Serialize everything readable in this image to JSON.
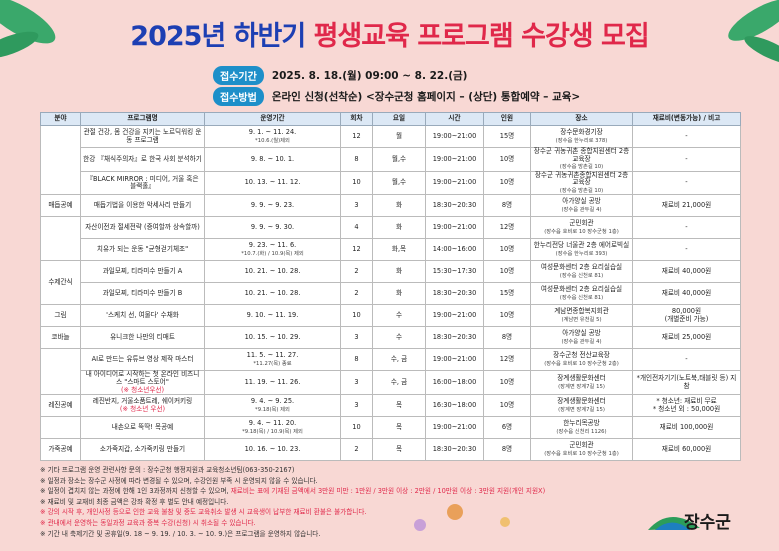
{
  "header": {
    "title_year": "2025년 하반기",
    "title_main": "평생교육 프로그램 수강생 모집",
    "info": [
      {
        "label": "접수기간",
        "value": "2025. 8. 18.(월) 09:00 ~ 8. 22.(금)"
      },
      {
        "label": "접수방법",
        "value": "온라인 신청(선착순) <장수군청 홈페이지 – (상단) 통합예약 – 교육>"
      }
    ]
  },
  "table": {
    "columns": [
      "분야",
      "프로그램명",
      "운영기간",
      "회차",
      "요일",
      "시간",
      "인원",
      "장소",
      "재료비(변동가능) / 비고"
    ],
    "groups": [
      {
        "rows": [
          {
            "name": "관절 건강, 몸 건강을 지키는 노르딕워킹 운동 프로그램",
            "period": "9. 1. ~ 11. 24.",
            "period_note": "*10.6.(월)제외",
            "sessions": "12",
            "day": "월",
            "time": "19:00~21:00",
            "capacity": "15명",
            "place": "장수문화경기장",
            "place_address": "(장수읍 한누리로 378)",
            "fee": "-"
          },
          {
            "name": "한강 『채식주의자』로 한국 사회 분석하기",
            "period": "9. 8. ~ 10. 1.",
            "sessions": "8",
            "day": "월,수",
            "time": "19:00~21:00",
            "capacity": "10명",
            "place": "장수군 귀농귀촌 종합지원센터 2층 교육장",
            "place_address": "(장수읍 방촌길 10)",
            "fee": "-"
          },
          {
            "name": "『BLACK MIRROR : 미디어, 거울 혹은 블랙홀』",
            "period": "10. 13. ~ 11. 12.",
            "sessions": "10",
            "day": "월,수",
            "time": "19:00~21:00",
            "capacity": "10명",
            "place": "장수군 귀농귀촌종합지원센터 2층 교육장",
            "place_address": "(장수읍 방촌길 10)",
            "fee": "-"
          }
        ]
      },
      {
        "category": "매듭공예",
        "rows": [
          {
            "name": "매듭기법을 이용한 악세사리 만들기",
            "period": "9. 9. ~ 9. 23.",
            "sessions": "3",
            "day": "화",
            "time": "18:30~20:30",
            "capacity": "8명",
            "place": "아가양실 공방",
            "place_address": "(장수읍 관두길 4)",
            "fee": "재료비 21,000원"
          }
        ]
      },
      {
        "rows": [
          {
            "name": "자산이전과 절세전략 (증여할까 상속할까)",
            "period": "9. 9. ~ 9. 30.",
            "sessions": "4",
            "day": "화",
            "time": "19:00~21:00",
            "capacity": "12명",
            "place": "군민회관",
            "place_address": "(장수읍 호비로 10 장수군청 1층)",
            "fee": "-"
          },
          {
            "name": "치유가 되는 운동 \"균형걷기체조\"",
            "period": "9. 23. ~ 11. 6.",
            "period_note": "*10.7.(화) / 10.9(목) 제외",
            "sessions": "12",
            "day": "화,목",
            "time": "14:00~16:00",
            "capacity": "10명",
            "place": "한누리전당 너울관 2층 에어로빅실",
            "place_address": "(장수읍 한누리로 393)",
            "fee": "-"
          }
        ]
      },
      {
        "category": "수제간식",
        "rows": [
          {
            "name": "과일모찌, 티라미수 만들기 A",
            "period": "10. 21. ~ 10. 28.",
            "sessions": "2",
            "day": "화",
            "time": "15:30~17:30",
            "capacity": "10명",
            "place": "여성문화센터 2층 요리실습실",
            "place_address": "(장수읍 신천로 81)",
            "fee": "재료비 40,000원"
          },
          {
            "name": "과일모찌, 티라미수 만들기 B",
            "period": "10. 21. ~ 10. 28.",
            "sessions": "2",
            "day": "화",
            "time": "18:30~20:30",
            "capacity": "15명",
            "place": "여성문화센터 2층 요리실습실",
            "place_address": "(장수읍 신천로 81)",
            "fee": "재료비 40,000원"
          }
        ]
      },
      {
        "category": "그림",
        "rows": [
          {
            "name": "'스케치 선, 여물다' 수채화",
            "period": "9. 10. ~ 11. 19.",
            "sessions": "10",
            "day": "수",
            "time": "19:00~21:00",
            "capacity": "10명",
            "place": "계남면종합복지회관",
            "place_address": "(계남면 유천길 5)",
            "fee": "80,000원",
            "fee_note": "(개별준비 가능)"
          }
        ]
      },
      {
        "category": "코바늘",
        "rows": [
          {
            "name": "유니크한 나만의 티매트",
            "period": "10. 15. ~ 10. 29.",
            "sessions": "3",
            "day": "수",
            "time": "18:30~20:30",
            "capacity": "8명",
            "place": "아가양실 공방",
            "place_address": "(장수읍 관두길 4)",
            "fee": "재료비 25,000원"
          }
        ]
      },
      {
        "rows": [
          {
            "name": "AI로 만드는 유튜브 영상 제작 마스터",
            "period": "11. 5. ~ 11. 27.",
            "period_note": "*11.27(목) 종료",
            "sessions": "8",
            "day": "수, 금",
            "time": "19:00~21:00",
            "capacity": "12명",
            "place": "장수군청 전산교육장",
            "place_address": "(장수읍 호비로 10 장수군청 2층)",
            "fee": "-"
          },
          {
            "name": "내 아이디어로 시작하는 첫 온라인 비즈니스 \"스마트 스토어\"",
            "name_note": "(※ 청소년우선)",
            "period": "11. 19. ~ 11. 26.",
            "sessions": "3",
            "day": "수, 금",
            "time": "16:00~18:00",
            "capacity": "10명",
            "place": "장계생활문화센터",
            "place_address": "(장계면 장계7길 15)",
            "fee": "*개인전자기기(노트북,태블릿 등) 지참"
          }
        ]
      },
      {
        "category": "레진공예",
        "rows": [
          {
            "name": "레진반지, 거울소품트레, 쉐이커키링",
            "name_note": "(※ 청소년 우선)",
            "period": "9. 4. ~ 9. 25.",
            "period_note": "*9.18(목) 제외",
            "sessions": "3",
            "day": "목",
            "time": "16:30~18:00",
            "capacity": "10명",
            "place": "장계생활문화센터",
            "place_address": "(장계면 장계7길 15)",
            "fee": "* 청소년: 재료비 무료",
            "fee_note": "* 청소년 외 : 50,000원"
          }
        ]
      },
      {
        "rows": [
          {
            "name": "내손으로 뚝딱! 목공예",
            "period": "9. 4. ~ 11. 20.",
            "period_note": "*9.18(목) / 10.9(목) 제외",
            "sessions": "10",
            "day": "목",
            "time": "19:00~21:00",
            "capacity": "6명",
            "place": "한누리목공방",
            "place_address": "(장수읍 신천리 1126)",
            "fee": "재료비 100,000원"
          }
        ]
      },
      {
        "category": "가죽공예",
        "rows": [
          {
            "name": "소가죽지갑, 소가죽키링 만들기",
            "period": "10. 16. ~ 10. 23.",
            "sessions": "2",
            "day": "목",
            "time": "18:30~20:30",
            "capacity": "8명",
            "place": "군민회관",
            "place_address": "(장수읍 호비로 10 장수군청 1층)",
            "fee": "재료비 60,000원"
          }
        ]
      }
    ]
  },
  "notes": [
    {
      "text": "※ 기타 프로그램 운영 관련사항 문의 : 장수군청 행정지원과 교육청소년팀(063-350-2167)"
    },
    {
      "text": "※ 일정과 장소는 장수군 사정에 따라 변경될 수 있으며, 수강인원 부족 시 운영되지 않을 수 있습니다."
    },
    {
      "text": "※ 일정이 겹치지 않는 과정에 한해 1인 3과정까지 신청할 수 있으며, ",
      "highlight": "재료비는 표에 기재된 금액에서 3만원 미만 : 1만원 / 3만원 이상 : 2만원 / 10만원 이상 : 3만원 지원(개인 지원X)"
    },
    {
      "text": "※ 재료비 및 교재비 최종 금액은 강좌 확정 후 별도 안내 예정입니다."
    },
    {
      "highlight": "※ 강의 시작 후, 개인사정 등으로 인한 교육 불참 및 중도 교육취소 발생 시 교육생이 납부한 재료비 환불은 불가합니다."
    },
    {
      "highlight": "※ 관내에서 운영하는 동일과정 교육과 중복 수강(신청) 시 취소될 수 있습니다."
    },
    {
      "text": "※ 기간 내 축제기간 및 공휴일(9. 18 ~ 9. 19. / 10. 3. ~ 10. 9.)은 프로그램을 운영하지 않습니다."
    }
  ],
  "logo": "장수군"
}
